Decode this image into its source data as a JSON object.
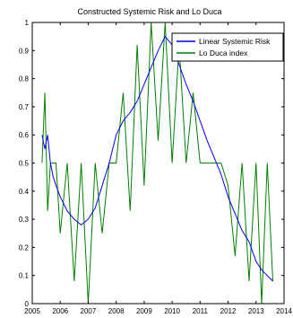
{
  "chart_data": {
    "type": "line",
    "title": "Constructed Systemic Risk and Lo Duca",
    "xlabel": "",
    "ylabel": "",
    "xlim": [
      2005,
      2014
    ],
    "ylim": [
      0,
      1
    ],
    "x_ticks": [
      "2005",
      "2006",
      "2007",
      "2008",
      "2009",
      "2010",
      "2011",
      "2012",
      "2013",
      "2014"
    ],
    "y_ticks": [
      "0",
      "0.1",
      "0.2",
      "0.3",
      "0.4",
      "0.5",
      "0.6",
      "0.7",
      "0.8",
      "0.9",
      "1"
    ],
    "grid": false,
    "legend_position": "top-right",
    "series": [
      {
        "name": "Linear Systemic Risk",
        "color": "#0000ff",
        "x": [
          2005.35,
          2005.45,
          2005.55,
          2005.65,
          2005.75,
          2005.85,
          2006.0,
          2006.25,
          2006.5,
          2006.75,
          2007.0,
          2007.25,
          2007.5,
          2007.75,
          2008.0,
          2008.25,
          2008.5,
          2008.75,
          2009.0,
          2009.25,
          2009.5,
          2009.75,
          2010.0,
          2010.25,
          2010.5,
          2010.75,
          2011.0,
          2011.25,
          2011.5,
          2011.75,
          2012.0,
          2012.25,
          2012.5,
          2012.75,
          2013.0,
          2013.2,
          2013.4,
          2013.6
        ],
        "y": [
          0.6,
          0.55,
          0.6,
          0.5,
          0.45,
          0.42,
          0.38,
          0.33,
          0.3,
          0.28,
          0.3,
          0.34,
          0.42,
          0.5,
          0.6,
          0.65,
          0.68,
          0.72,
          0.78,
          0.84,
          0.9,
          0.95,
          0.92,
          0.85,
          0.78,
          0.72,
          0.65,
          0.58,
          0.52,
          0.46,
          0.38,
          0.32,
          0.26,
          0.22,
          0.15,
          0.12,
          0.1,
          0.08
        ]
      },
      {
        "name": "Lo Duca index",
        "color": "#008000",
        "x": [
          2005.35,
          2005.45,
          2005.55,
          2005.65,
          2005.75,
          2005.85,
          2006.0,
          2006.25,
          2006.5,
          2006.75,
          2007.0,
          2007.25,
          2007.5,
          2007.75,
          2008.0,
          2008.25,
          2008.5,
          2008.75,
          2009.0,
          2009.25,
          2009.5,
          2009.75,
          2010.0,
          2010.25,
          2010.5,
          2010.75,
          2011.0,
          2011.25,
          2011.5,
          2011.75,
          2012.0,
          2012.25,
          2012.5,
          2012.75,
          2013.0,
          2013.2,
          2013.4,
          2013.6
        ],
        "y": [
          0.5,
          0.75,
          0.33,
          0.5,
          0.5,
          0.5,
          0.25,
          0.5,
          0.08,
          0.5,
          0.0,
          0.5,
          0.25,
          0.5,
          0.5,
          0.75,
          0.33,
          0.92,
          0.42,
          1.0,
          0.58,
          1.0,
          0.5,
          0.92,
          0.5,
          0.75,
          0.5,
          0.5,
          0.5,
          0.5,
          0.42,
          0.17,
          0.5,
          0.08,
          0.5,
          0.0,
          0.5,
          0.08
        ]
      }
    ]
  }
}
